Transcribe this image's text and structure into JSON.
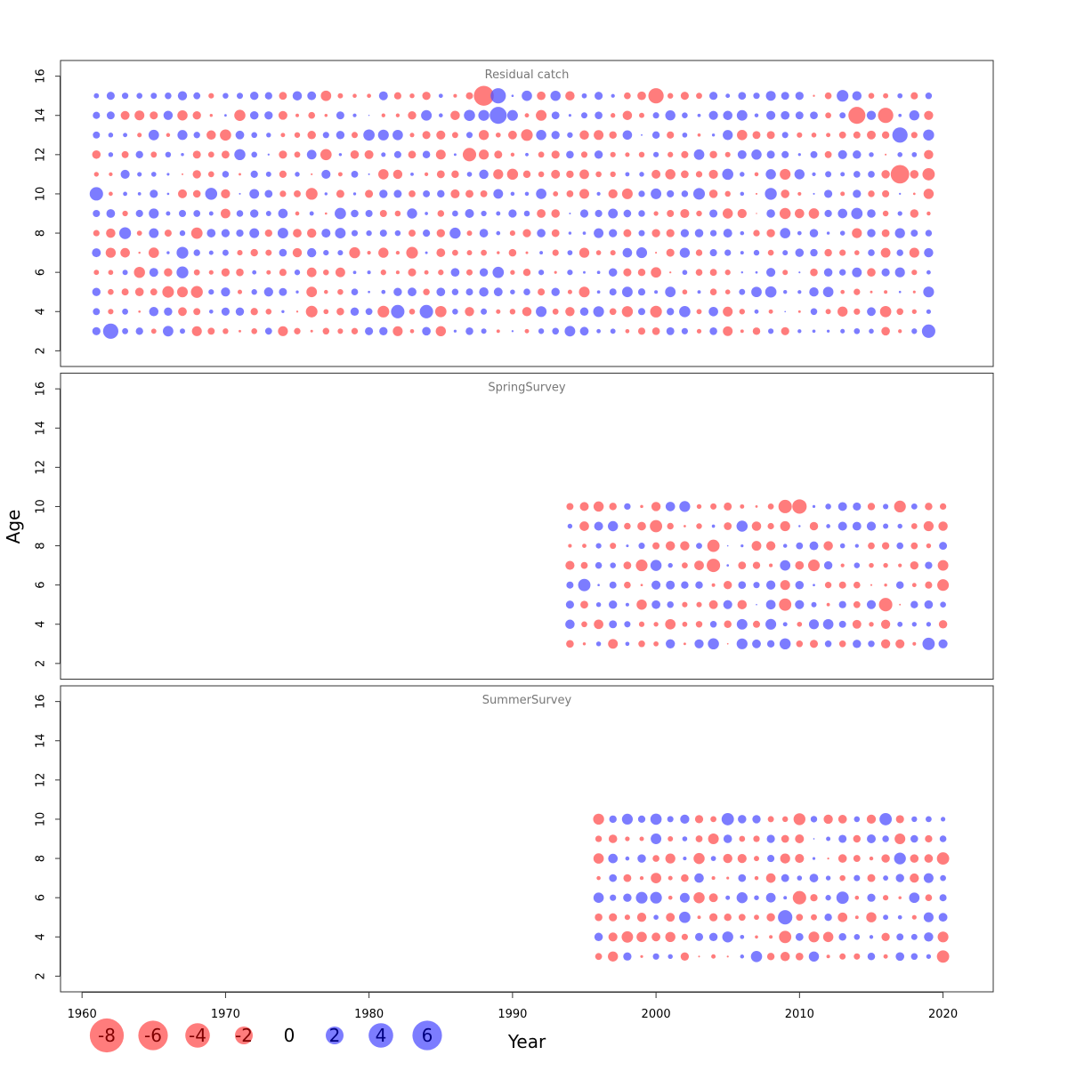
{
  "chart_data": {
    "type": "scatter",
    "subtype": "bubble-residuals",
    "xlabel": "Year",
    "ylabel": "Age",
    "xlim": [
      1960,
      2020
    ],
    "ylim": [
      2,
      16
    ],
    "x_ticks": [
      1960,
      1970,
      1980,
      1990,
      2000,
      2010,
      2020
    ],
    "y_ticks": [
      2,
      4,
      6,
      8,
      10,
      12,
      14,
      16
    ],
    "colors": {
      "positive": "#5050ff",
      "negative": "#ff5050"
    },
    "legend": {
      "placement": "bottom-left",
      "entries": [
        "-8",
        "-6",
        "-4",
        "-2",
        "0",
        "2",
        "4",
        "6"
      ],
      "values": [
        -8,
        -6,
        -4,
        -2,
        0,
        2,
        4,
        6
      ]
    },
    "panels": [
      {
        "title": "Residual catch",
        "years": [
          1961,
          2019
        ],
        "ages": [
          3,
          15
        ],
        "notes": "Dense grid of residuals for catch-at-age; notable large values: age 15 in 1988 (-7), age 11 in 2017 (-6), age 3 in 1962 (+4), age 10 in 1961 (+3)",
        "highlights": [
          {
            "year": 1988,
            "age": 15,
            "value": -7
          },
          {
            "year": 1989,
            "age": 15,
            "value": 4
          },
          {
            "year": 1989,
            "age": 14,
            "value": 5
          },
          {
            "year": 2000,
            "age": 15,
            "value": -4
          },
          {
            "year": 2014,
            "age": 14,
            "value": -5
          },
          {
            "year": 2016,
            "age": 14,
            "value": -4
          },
          {
            "year": 2017,
            "age": 13,
            "value": 4
          },
          {
            "year": 2017,
            "age": 11,
            "value": -6
          },
          {
            "year": 1961,
            "age": 10,
            "value": 3
          },
          {
            "year": 1962,
            "age": 3,
            "value": 4
          },
          {
            "year": 1982,
            "age": 4,
            "value": 3
          },
          {
            "year": 1984,
            "age": 4,
            "value": 3
          },
          {
            "year": 1987,
            "age": 12,
            "value": -3
          },
          {
            "year": 2019,
            "age": 3,
            "value": 3
          },
          {
            "year": 2019,
            "age": 11,
            "value": -2.5
          }
        ]
      },
      {
        "title": "SpringSurvey",
        "years": [
          1994,
          2020
        ],
        "ages": [
          3,
          10
        ],
        "highlights": [
          {
            "year": 2009,
            "age": 10,
            "value": -3
          },
          {
            "year": 2010,
            "age": 10,
            "value": -3.5
          },
          {
            "year": 2004,
            "age": 7,
            "value": -3
          },
          {
            "year": 2004,
            "age": 8,
            "value": -2.5
          },
          {
            "year": 2016,
            "age": 5,
            "value": -3
          },
          {
            "year": 2009,
            "age": 5,
            "value": -2.5
          },
          {
            "year": 1995,
            "age": 6,
            "value": 2.5
          },
          {
            "year": 2019,
            "age": 3,
            "value": 2.5
          },
          {
            "year": 2000,
            "age": 9,
            "value": -2.5
          }
        ]
      },
      {
        "title": "SummerSurvey",
        "years": [
          1996,
          2020
        ],
        "ages": [
          3,
          10
        ],
        "highlights": [
          {
            "year": 2009,
            "age": 5,
            "value": 3.5
          },
          {
            "year": 2010,
            "age": 6,
            "value": -3
          },
          {
            "year": 2009,
            "age": 4,
            "value": -2.5
          },
          {
            "year": 2005,
            "age": 10,
            "value": 2.5
          },
          {
            "year": 2016,
            "age": 10,
            "value": 2.5
          },
          {
            "year": 2020,
            "age": 3,
            "value": -2.5
          },
          {
            "year": 2020,
            "age": 8,
            "value": -2.5
          },
          {
            "year": 2013,
            "age": 6,
            "value": 2.5
          }
        ]
      }
    ]
  }
}
